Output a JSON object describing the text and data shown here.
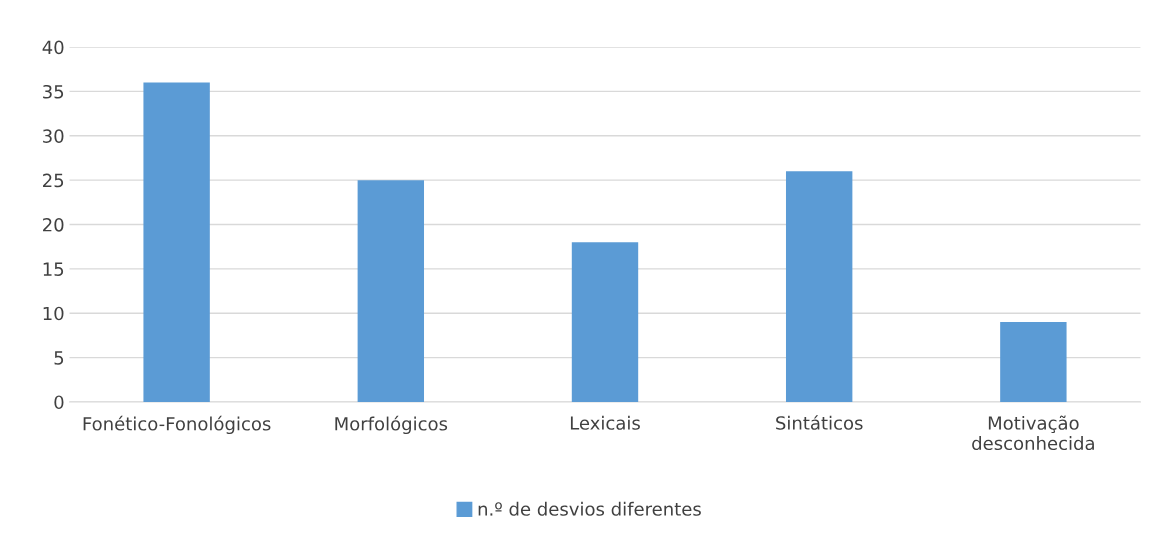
{
  "chart_data": {
    "type": "bar",
    "categories": [
      "Fonético-Fonológicos",
      "Morfológicos",
      "Lexicais",
      "Sintáticos",
      "Motivação\ndesconhecida"
    ],
    "series": [
      {
        "name": "n.º de desvios diferentes",
        "color": "#5b9bd5",
        "values": [
          36,
          25,
          18,
          26,
          9
        ]
      }
    ],
    "ylim": [
      0,
      40
    ],
    "yticks": [
      0,
      5,
      10,
      15,
      20,
      25,
      30,
      35,
      40
    ],
    "grid": "y",
    "legend": "bottom"
  }
}
